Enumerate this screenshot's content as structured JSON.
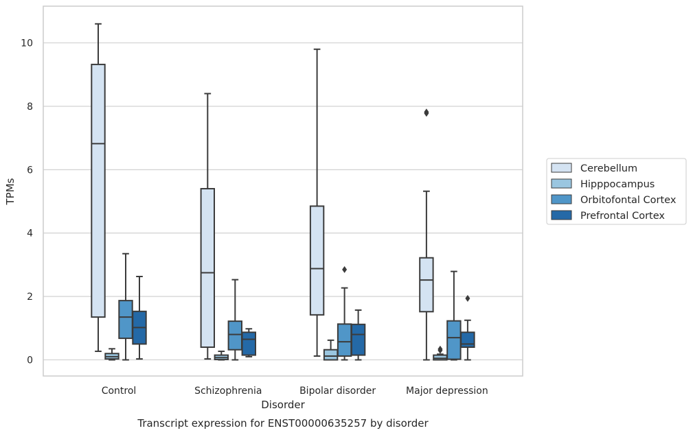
{
  "chart_data": {
    "type": "box",
    "title": "Transcript expression for ENST00000635257 by disorder",
    "xlabel": "Disorder",
    "ylabel": "TPMs",
    "ylim": [
      -0.5,
      11.2
    ],
    "yticks": [
      0,
      2,
      4,
      6,
      8,
      10
    ],
    "grid": true,
    "legend_position": "right",
    "categories": [
      "Control",
      "Schizophrenia",
      "Bipolar disorder",
      "Major depression"
    ],
    "series": [
      {
        "name": "Cerebellum",
        "color": "#d4e3f2",
        "boxes": [
          {
            "whisker_low": 0.27,
            "q1": 1.35,
            "median": 6.82,
            "q3": 9.32,
            "whisker_high": 10.6,
            "outliers": []
          },
          {
            "whisker_low": 0.03,
            "q1": 0.4,
            "median": 2.75,
            "q3": 5.4,
            "whisker_high": 8.4,
            "outliers": []
          },
          {
            "whisker_low": 0.12,
            "q1": 1.42,
            "median": 2.88,
            "q3": 4.85,
            "whisker_high": 9.8,
            "outliers": []
          },
          {
            "whisker_low": 0.0,
            "q1": 1.52,
            "median": 2.52,
            "q3": 3.22,
            "whisker_high": 5.32,
            "outliers": [
              7.82,
              7.78
            ]
          }
        ]
      },
      {
        "name": "Hipppocampus",
        "color": "#9ac6e0",
        "boxes": [
          {
            "whisker_low": 0.0,
            "q1": 0.03,
            "median": 0.1,
            "q3": 0.2,
            "whisker_high": 0.35,
            "outliers": []
          },
          {
            "whisker_low": 0.0,
            "q1": 0.01,
            "median": 0.07,
            "q3": 0.15,
            "whisker_high": 0.27,
            "outliers": []
          },
          {
            "whisker_low": 0.0,
            "q1": 0.0,
            "median": 0.12,
            "q3": 0.32,
            "whisker_high": 0.62,
            "outliers": []
          },
          {
            "whisker_low": 0.0,
            "q1": 0.0,
            "median": 0.05,
            "q3": 0.15,
            "whisker_high": 0.18,
            "outliers": [
              0.34,
              0.3
            ]
          }
        ]
      },
      {
        "name": "Orbitofontal Cortex",
        "color": "#5096c8",
        "boxes": [
          {
            "whisker_low": 0.0,
            "q1": 0.68,
            "median": 1.35,
            "q3": 1.87,
            "whisker_high": 3.35,
            "outliers": []
          },
          {
            "whisker_low": 0.0,
            "q1": 0.32,
            "median": 0.8,
            "q3": 1.22,
            "whisker_high": 2.53,
            "outliers": []
          },
          {
            "whisker_low": 0.0,
            "q1": 0.12,
            "median": 0.57,
            "q3": 1.13,
            "whisker_high": 2.27,
            "outliers": [
              2.85
            ]
          },
          {
            "whisker_low": 0.0,
            "q1": 0.02,
            "median": 0.7,
            "q3": 1.23,
            "whisker_high": 2.79,
            "outliers": []
          }
        ]
      },
      {
        "name": "Prefrontal Cortex",
        "color": "#2469a7",
        "boxes": [
          {
            "whisker_low": 0.03,
            "q1": 0.5,
            "median": 1.02,
            "q3": 1.53,
            "whisker_high": 2.63,
            "outliers": []
          },
          {
            "whisker_low": 0.1,
            "q1": 0.15,
            "median": 0.65,
            "q3": 0.87,
            "whisker_high": 0.98,
            "outliers": []
          },
          {
            "whisker_low": 0.0,
            "q1": 0.15,
            "median": 0.8,
            "q3": 1.12,
            "whisker_high": 1.57,
            "outliers": []
          },
          {
            "whisker_low": 0.0,
            "q1": 0.4,
            "median": 0.5,
            "q3": 0.87,
            "whisker_high": 1.25,
            "outliers": [
              1.94
            ]
          }
        ]
      }
    ]
  }
}
